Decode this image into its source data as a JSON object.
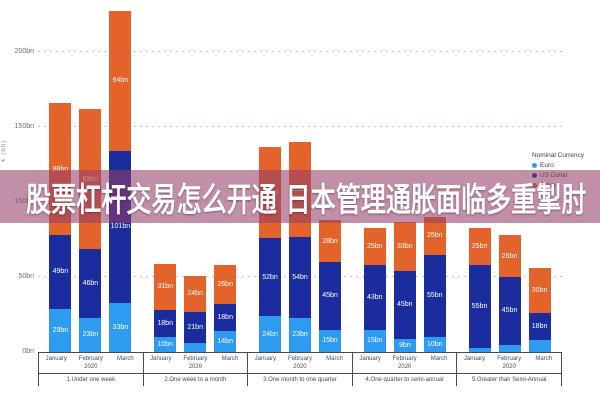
{
  "banner": {
    "text": "股票杠杆交易怎么开通 日本管理通胀面临多重掣肘",
    "bg_color": "rgba(148,62,104,0.58)",
    "text_color": "#ffffff"
  },
  "legend": {
    "title": "Nominal Currency",
    "items": [
      {
        "label": "Euro",
        "color": "#2d9bf0"
      },
      {
        "label": "US Dollar",
        "color": "#1b2d9e"
      },
      {
        "label": "Other",
        "color": "#e4632b"
      }
    ]
  },
  "chart_data": {
    "type": "bar",
    "stacked": true,
    "title": "",
    "xlabel": "",
    "ylabel": "€ (bn)",
    "unit": "bn",
    "ylim": [
      0,
      235
    ],
    "grid": true,
    "grid_style": "dotted",
    "grid_color": "#e6c498",
    "legend_position": "right",
    "yticks": [
      {
        "label": "0bn",
        "value": 0
      },
      {
        "label": "50bn",
        "value": 50
      },
      {
        "label": "100bn",
        "value": 100
      },
      {
        "label": "150bn",
        "value": 150
      },
      {
        "label": "200bn",
        "value": 200
      }
    ],
    "series": [
      {
        "name": "Euro",
        "color": "#2d9bf0"
      },
      {
        "name": "US Dollar",
        "color": "#1b2d9e"
      },
      {
        "name": "Other",
        "color": "#e4632b"
      }
    ],
    "months": [
      "January",
      "February",
      "March"
    ],
    "year": "2020",
    "groups": [
      {
        "label": "1.Under one week",
        "values": [
          [
            29,
            49,
            88
          ],
          [
            23,
            46,
            93
          ],
          [
            33,
            101,
            94
          ]
        ]
      },
      {
        "label": "2.One week to a month",
        "values": [
          [
            10,
            18,
            31
          ],
          [
            6,
            21,
            24
          ],
          [
            14,
            18,
            26
          ]
        ]
      },
      {
        "label": "3.One month to one quarter",
        "values": [
          [
            24,
            52,
            61
          ],
          [
            23,
            54,
            63
          ],
          [
            15,
            45,
            28
          ]
        ]
      },
      {
        "label": "4.One quarter to semi-annual",
        "values": [
          [
            15,
            43,
            25
          ],
          [
            9,
            45,
            33
          ],
          [
            10,
            55,
            25
          ]
        ]
      },
      {
        "label": "5.Greater than Semi-Annual",
        "values": [
          [
            3,
            55,
            25
          ],
          [
            5,
            45,
            28
          ],
          [
            8,
            18,
            30
          ]
        ]
      }
    ]
  }
}
